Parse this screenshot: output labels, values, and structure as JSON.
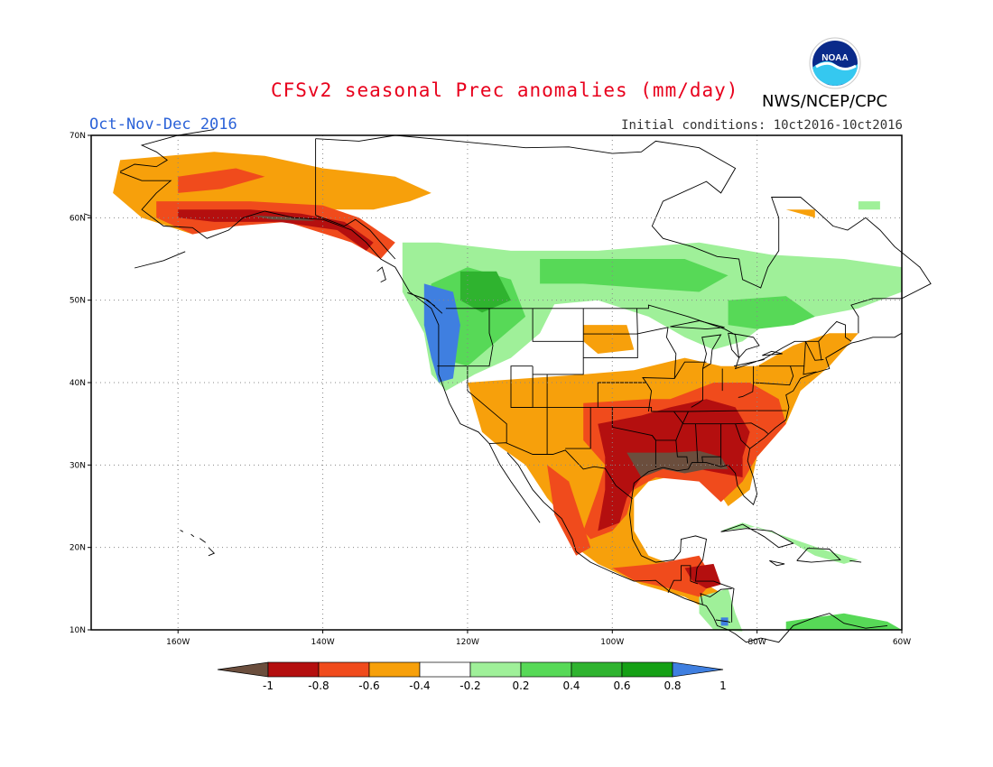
{
  "header": {
    "title": "CFSv2 seasonal Prec anomalies (mm/day)",
    "period": "Oct-Nov-Dec 2016",
    "initial_conditions": "Initial conditions: 10ct2016-10ct2016",
    "agency": "NWS/NCEP/CPC",
    "logo_text": "NOAA"
  },
  "map": {
    "lat_labels": [
      "70N",
      "60N",
      "50N",
      "40N",
      "30N",
      "20N",
      "10N"
    ],
    "lon_labels": [
      "160W",
      "140W",
      "120W",
      "100W",
      "80W",
      "60W"
    ],
    "extent": {
      "lon_min": -172,
      "lon_max": -60,
      "lat_min": 10,
      "lat_max": 70
    },
    "gridlines": "dotted"
  },
  "legend": {
    "labels": [
      "-1",
      "-0.8",
      "-0.6",
      "-0.4",
      "-0.2",
      "0.2",
      "0.4",
      "0.6",
      "0.8",
      "1"
    ],
    "colors": [
      "#6b4e3d",
      "#b40f0f",
      "#f04b1c",
      "#f7a00b",
      "#ffffff",
      "#9ff099",
      "#57d957",
      "#2fb32f",
      "#15a015",
      "#3f7fe0"
    ],
    "units": "mm/day"
  }
}
